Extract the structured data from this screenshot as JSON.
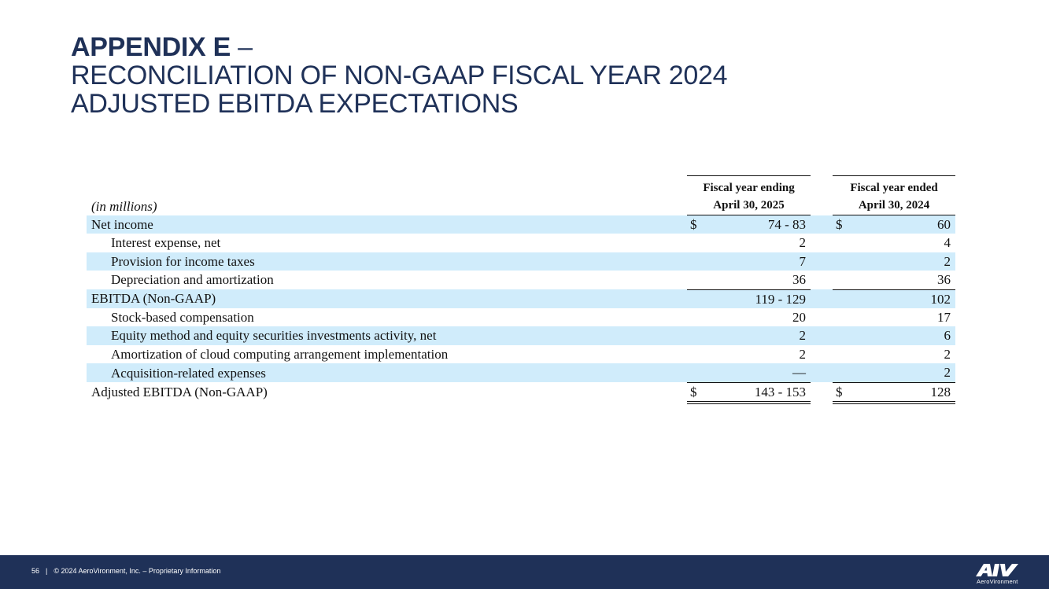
{
  "title": {
    "line1_bold": "APPENDIX E",
    "line1_rest": " –",
    "line2": "RECONCILIATION OF NON-GAAP FISCAL YEAR 2024",
    "line3": "ADJUSTED EBITDA EXPECTATIONS"
  },
  "table": {
    "unit_label": "(in millions)",
    "col_current": {
      "line1": "Fiscal year ending",
      "line2": "April 30, 2025"
    },
    "col_prior": {
      "line1": "Fiscal year ended",
      "line2": "April 30, 2024"
    },
    "rows": [
      {
        "label": "Net income",
        "cur_sym": "$",
        "cur": "74 - 83",
        "pri_sym": "$",
        "pri": "60"
      },
      {
        "label": "Interest expense, net",
        "cur_sym": "",
        "cur": "2",
        "pri_sym": "",
        "pri": "4"
      },
      {
        "label": "Provision for income taxes",
        "cur_sym": "",
        "cur": "7",
        "pri_sym": "",
        "pri": "2"
      },
      {
        "label": "Depreciation and amortization",
        "cur_sym": "",
        "cur": "36",
        "pri_sym": "",
        "pri": "36"
      },
      {
        "label": "EBITDA (Non-GAAP)",
        "cur_sym": "",
        "cur": "119 - 129",
        "pri_sym": "",
        "pri": "102"
      },
      {
        "label": "Stock-based compensation",
        "cur_sym": "",
        "cur": "20",
        "pri_sym": "",
        "pri": "17"
      },
      {
        "label": "Equity method and equity securities investments activity, net",
        "cur_sym": "",
        "cur": "2",
        "pri_sym": "",
        "pri": "6"
      },
      {
        "label": "Amortization of cloud computing arrangement implementation",
        "cur_sym": "",
        "cur": "2",
        "pri_sym": "",
        "pri": "2"
      },
      {
        "label": "Acquisition-related expenses",
        "cur_sym": "",
        "cur": "—",
        "pri_sym": "",
        "pri": "2"
      },
      {
        "label": "Adjusted EBITDA (Non-GAAP)",
        "cur_sym": "$",
        "cur": "143 - 153",
        "pri_sym": "$",
        "pri": "128"
      }
    ]
  },
  "footer": {
    "page_number": "56",
    "separator": "|",
    "copyright": "© 2024 AeroVironment, Inc. – Proprietary Information",
    "logo_subtext": "AeroVironment"
  },
  "colors": {
    "navy": "#1f3158",
    "row_shade": "#d0ecfb"
  }
}
